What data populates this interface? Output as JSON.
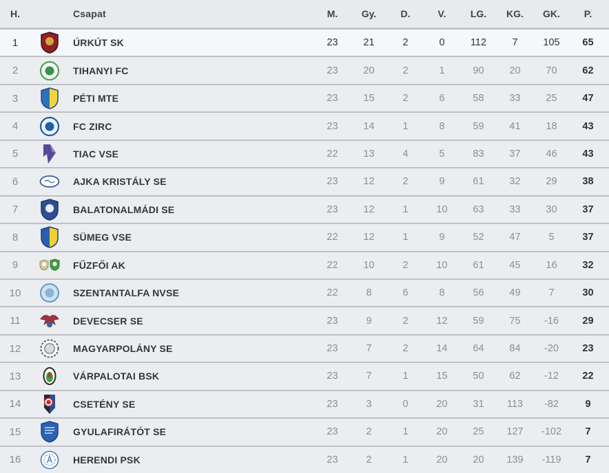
{
  "table": {
    "headers": {
      "pos": "H.",
      "team": "Csapat",
      "stats": [
        "M.",
        "Gy.",
        "D.",
        "V.",
        "LG.",
        "KG.",
        "GK.",
        "P."
      ]
    },
    "colors": {
      "row_bg": "#ebedf0",
      "header_bg": "#e8eaed",
      "highlight_bg": "#f6f7fa",
      "separator": "#bdc1c7",
      "text_dark": "#2e3237",
      "text_gray": "#8a8f96"
    },
    "rows": [
      {
        "pos": "1",
        "team": "ÚRKÚT SK",
        "highlight": true,
        "logo": {
          "shape": "shield",
          "colors": [
            "#8b2227",
            "#d8a63e",
            "#401317"
          ]
        },
        "stats": [
          "23",
          "21",
          "2",
          "0",
          "112",
          "7",
          "105",
          "65"
        ]
      },
      {
        "pos": "2",
        "team": "TIHANYI FC",
        "logo": {
          "shape": "circle",
          "colors": [
            "#57a05f",
            "#f2f7f2",
            "#3f8f4f"
          ]
        },
        "stats": [
          "23",
          "20",
          "2",
          "1",
          "90",
          "20",
          "70",
          "62"
        ]
      },
      {
        "pos": "3",
        "team": "PÉTI MTE",
        "logo": {
          "shape": "shield-split",
          "colors": [
            "#2b72b8",
            "#f2d43c",
            "#1c4f86"
          ]
        },
        "stats": [
          "23",
          "15",
          "2",
          "6",
          "58",
          "33",
          "25",
          "47"
        ]
      },
      {
        "pos": "4",
        "team": "FC ZIRC",
        "logo": {
          "shape": "circle",
          "colors": [
            "#1d5fa9",
            "#eef3fa",
            "#1d5fa9"
          ]
        },
        "stats": [
          "23",
          "14",
          "1",
          "8",
          "59",
          "41",
          "18",
          "43"
        ]
      },
      {
        "pos": "5",
        "team": "TIAC VSE",
        "logo": {
          "shape": "flag",
          "colors": [
            "#57499a",
            "#8d84c0",
            "#ffffff"
          ]
        },
        "stats": [
          "22",
          "13",
          "4",
          "5",
          "83",
          "37",
          "46",
          "43"
        ]
      },
      {
        "pos": "6",
        "team": "AJKA KRISTÁLY SE",
        "logo": {
          "shape": "ellipse",
          "colors": [
            "#3a5fa0",
            "#fdfdfd",
            "#3a5fa0"
          ]
        },
        "stats": [
          "23",
          "12",
          "2",
          "9",
          "61",
          "32",
          "29",
          "38"
        ]
      },
      {
        "pos": "7",
        "team": "BALATONALMÁDI SE",
        "logo": {
          "shape": "shield",
          "colors": [
            "#2e4f92",
            "#e8edf5",
            "#1c3567"
          ]
        },
        "stats": [
          "23",
          "12",
          "1",
          "10",
          "63",
          "33",
          "30",
          "37"
        ]
      },
      {
        "pos": "8",
        "team": "SÜMEG VSE",
        "logo": {
          "shape": "shield-split",
          "colors": [
            "#2a5fae",
            "#f0d030",
            "#1c3f7a"
          ]
        },
        "stats": [
          "22",
          "12",
          "1",
          "9",
          "52",
          "47",
          "5",
          "37"
        ]
      },
      {
        "pos": "9",
        "team": "FŰZFŐI AK",
        "logo": {
          "shape": "double-shield",
          "colors": [
            "#d3c493",
            "#3fa040",
            "#ffffff"
          ]
        },
        "stats": [
          "22",
          "10",
          "2",
          "10",
          "61",
          "45",
          "16",
          "32"
        ]
      },
      {
        "pos": "10",
        "team": "SZENTANTALFA NVSE",
        "logo": {
          "shape": "circle",
          "colors": [
            "#6f9fc8",
            "#cfe2f0",
            "#88b4d8"
          ]
        },
        "stats": [
          "22",
          "8",
          "6",
          "8",
          "56",
          "49",
          "7",
          "30"
        ]
      },
      {
        "pos": "11",
        "team": "DEVECSER SE",
        "logo": {
          "shape": "eagle",
          "colors": [
            "#a83242",
            "#51588e",
            "#3a2030"
          ]
        },
        "stats": [
          "23",
          "9",
          "2",
          "12",
          "59",
          "75",
          "-16",
          "29"
        ]
      },
      {
        "pos": "12",
        "team": "MAGYARPOLÁNY SE",
        "logo": {
          "shape": "wreath",
          "colors": [
            "#5a5d62",
            "#d8dadc",
            "#5a5d62"
          ]
        },
        "stats": [
          "23",
          "7",
          "2",
          "14",
          "64",
          "84",
          "-20",
          "23"
        ]
      },
      {
        "pos": "13",
        "team": "VÁRPALOTAI BSK",
        "logo": {
          "shape": "ring",
          "colors": [
            "#2b2b2b",
            "#3fa040",
            "#b03838"
          ]
        },
        "stats": [
          "23",
          "7",
          "1",
          "15",
          "50",
          "62",
          "-12",
          "22"
        ]
      },
      {
        "pos": "14",
        "team": "CSETÉNY SE",
        "logo": {
          "shape": "pennant",
          "colors": [
            "#26262e",
            "#c03038",
            "#2a4f92"
          ]
        },
        "stats": [
          "23",
          "3",
          "0",
          "20",
          "31",
          "113",
          "-82",
          "9"
        ]
      },
      {
        "pos": "15",
        "team": "GYULAFIRÁTÓT SE",
        "logo": {
          "shape": "shield-lines",
          "colors": [
            "#2b62b4",
            "#cfe0f5",
            "#1c4486"
          ]
        },
        "stats": [
          "23",
          "2",
          "1",
          "20",
          "25",
          "127",
          "-102",
          "7"
        ]
      },
      {
        "pos": "16",
        "team": "HERENDI PSK",
        "logo": {
          "shape": "text-circle",
          "colors": [
            "#4a7ab8",
            "#ffffff",
            "#4a7ab8"
          ]
        },
        "stats": [
          "23",
          "2",
          "1",
          "20",
          "20",
          "139",
          "-119",
          "7"
        ]
      }
    ]
  }
}
